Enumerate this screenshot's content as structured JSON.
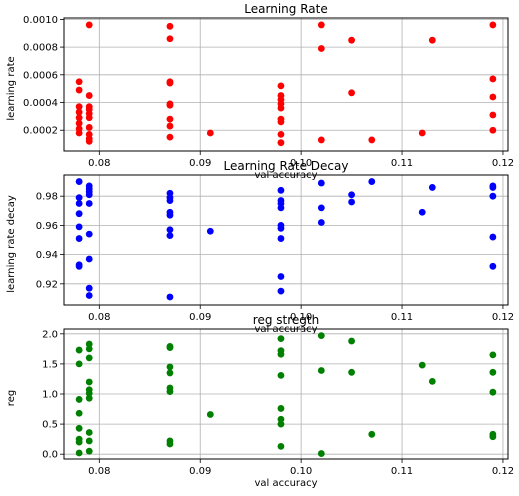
{
  "chart_data": [
    {
      "type": "scatter",
      "title": "Learning Rate",
      "xlabel": "val accuracy",
      "ylabel": "learning rate",
      "xlim": [
        0.0765,
        0.1205
      ],
      "ylim": [
        5e-05,
        0.00101
      ],
      "xticks": [
        0.08,
        0.09,
        0.1,
        0.11,
        0.12
      ],
      "xtick_labels": [
        "0.08",
        "0.09",
        "0.10",
        "0.11",
        "0.12"
      ],
      "yticks": [
        0.0002,
        0.0004,
        0.0006,
        0.0008,
        0.001
      ],
      "ytick_labels": [
        "0.0002",
        "0.0004",
        "0.0006",
        "0.0008",
        "0.0010"
      ],
      "grid": true,
      "color": "#ff0000",
      "points": [
        [
          0.078,
          0.00055
        ],
        [
          0.078,
          0.00049
        ],
        [
          0.078,
          0.00037
        ],
        [
          0.078,
          0.00033
        ],
        [
          0.078,
          0.00029
        ],
        [
          0.078,
          0.00025
        ],
        [
          0.078,
          0.00021
        ],
        [
          0.078,
          0.00018
        ],
        [
          0.079,
          0.00096
        ],
        [
          0.079,
          0.00045
        ],
        [
          0.079,
          0.00037
        ],
        [
          0.079,
          0.00035
        ],
        [
          0.079,
          0.00032
        ],
        [
          0.079,
          0.00029
        ],
        [
          0.079,
          0.00022
        ],
        [
          0.079,
          0.00017
        ],
        [
          0.079,
          0.00014
        ],
        [
          0.079,
          0.00012
        ],
        [
          0.087,
          0.00095
        ],
        [
          0.087,
          0.00086
        ],
        [
          0.087,
          0.00055
        ],
        [
          0.087,
          0.00054
        ],
        [
          0.087,
          0.00039
        ],
        [
          0.087,
          0.00038
        ],
        [
          0.087,
          0.00028
        ],
        [
          0.087,
          0.00023
        ],
        [
          0.087,
          0.00015
        ],
        [
          0.091,
          0.00018
        ],
        [
          0.098,
          0.00052
        ],
        [
          0.098,
          0.00045
        ],
        [
          0.098,
          0.00042
        ],
        [
          0.098,
          0.00039
        ],
        [
          0.098,
          0.00036
        ],
        [
          0.098,
          0.00028
        ],
        [
          0.098,
          0.00026
        ],
        [
          0.098,
          0.00017
        ],
        [
          0.098,
          0.00011
        ],
        [
          0.102,
          0.00096
        ],
        [
          0.102,
          0.00079
        ],
        [
          0.102,
          0.00013
        ],
        [
          0.105,
          0.00085
        ],
        [
          0.105,
          0.00047
        ],
        [
          0.107,
          0.00013
        ],
        [
          0.112,
          0.00018
        ],
        [
          0.113,
          0.00085
        ],
        [
          0.119,
          0.00096
        ],
        [
          0.119,
          0.00057
        ],
        [
          0.119,
          0.00044
        ],
        [
          0.119,
          0.00031
        ],
        [
          0.119,
          0.0002
        ]
      ]
    },
    {
      "type": "scatter",
      "title": "Learning Rate Decay",
      "xlabel": "val accuracy",
      "ylabel": "learning rate decay",
      "xlim": [
        0.0765,
        0.1205
      ],
      "ylim": [
        0.9055,
        0.9945
      ],
      "xticks": [
        0.08,
        0.09,
        0.1,
        0.11,
        0.12
      ],
      "xtick_labels": [
        "0.08",
        "0.09",
        "0.10",
        "0.11",
        "0.12"
      ],
      "yticks": [
        0.92,
        0.94,
        0.96,
        0.98
      ],
      "ytick_labels": [
        "0.92",
        "0.94",
        "0.96",
        "0.98"
      ],
      "grid": true,
      "color": "#0000ff",
      "points": [
        [
          0.078,
          0.99
        ],
        [
          0.078,
          0.979
        ],
        [
          0.078,
          0.975
        ],
        [
          0.078,
          0.968
        ],
        [
          0.078,
          0.959
        ],
        [
          0.078,
          0.951
        ],
        [
          0.078,
          0.933
        ],
        [
          0.078,
          0.932
        ],
        [
          0.079,
          0.987
        ],
        [
          0.079,
          0.985
        ],
        [
          0.079,
          0.983
        ],
        [
          0.079,
          0.981
        ],
        [
          0.079,
          0.975
        ],
        [
          0.079,
          0.954
        ],
        [
          0.079,
          0.937
        ],
        [
          0.079,
          0.917
        ],
        [
          0.079,
          0.912
        ],
        [
          0.087,
          0.982
        ],
        [
          0.087,
          0.979
        ],
        [
          0.087,
          0.977
        ],
        [
          0.087,
          0.969
        ],
        [
          0.087,
          0.967
        ],
        [
          0.087,
          0.957
        ],
        [
          0.087,
          0.953
        ],
        [
          0.087,
          0.911
        ],
        [
          0.091,
          0.956
        ],
        [
          0.098,
          0.984
        ],
        [
          0.098,
          0.977
        ],
        [
          0.098,
          0.975
        ],
        [
          0.098,
          0.972
        ],
        [
          0.098,
          0.96
        ],
        [
          0.098,
          0.958
        ],
        [
          0.098,
          0.951
        ],
        [
          0.098,
          0.925
        ],
        [
          0.098,
          0.915
        ],
        [
          0.102,
          0.989
        ],
        [
          0.102,
          0.972
        ],
        [
          0.102,
          0.962
        ],
        [
          0.105,
          0.981
        ],
        [
          0.105,
          0.976
        ],
        [
          0.107,
          0.99
        ],
        [
          0.112,
          0.969
        ],
        [
          0.113,
          0.986
        ],
        [
          0.119,
          0.987
        ],
        [
          0.119,
          0.986
        ],
        [
          0.119,
          0.98
        ],
        [
          0.119,
          0.952
        ],
        [
          0.119,
          0.932
        ]
      ]
    },
    {
      "type": "scatter",
      "title": "reg stregth",
      "xlabel": "val accuracy",
      "ylabel": "reg",
      "xlim": [
        0.0765,
        0.1205
      ],
      "ylim": [
        -0.08,
        2.08
      ],
      "xticks": [
        0.08,
        0.09,
        0.1,
        0.11,
        0.12
      ],
      "xtick_labels": [
        "0.08",
        "0.09",
        "0.10",
        "0.11",
        "0.12"
      ],
      "yticks": [
        0.0,
        0.5,
        1.0,
        1.5,
        2.0
      ],
      "ytick_labels": [
        "0.0",
        "0.5",
        "1.0",
        "1.5",
        "2.0"
      ],
      "grid": true,
      "color": "#008000",
      "points": [
        [
          0.078,
          1.73
        ],
        [
          0.078,
          1.5
        ],
        [
          0.078,
          0.91
        ],
        [
          0.078,
          0.68
        ],
        [
          0.078,
          0.43
        ],
        [
          0.078,
          0.25
        ],
        [
          0.078,
          0.2
        ],
        [
          0.078,
          0.02
        ],
        [
          0.079,
          1.83
        ],
        [
          0.079,
          1.75
        ],
        [
          0.079,
          1.6
        ],
        [
          0.079,
          1.2
        ],
        [
          0.079,
          1.07
        ],
        [
          0.079,
          1.01
        ],
        [
          0.079,
          0.93
        ],
        [
          0.079,
          0.36
        ],
        [
          0.079,
          0.22
        ],
        [
          0.079,
          0.05
        ],
        [
          0.087,
          1.79
        ],
        [
          0.087,
          1.77
        ],
        [
          0.087,
          1.45
        ],
        [
          0.087,
          1.35
        ],
        [
          0.087,
          1.1
        ],
        [
          0.087,
          1.04
        ],
        [
          0.087,
          0.22
        ],
        [
          0.087,
          0.17
        ],
        [
          0.091,
          0.66
        ],
        [
          0.098,
          1.92
        ],
        [
          0.098,
          1.72
        ],
        [
          0.098,
          1.66
        ],
        [
          0.098,
          1.31
        ],
        [
          0.098,
          0.76
        ],
        [
          0.098,
          0.58
        ],
        [
          0.098,
          0.5
        ],
        [
          0.098,
          0.13
        ],
        [
          0.102,
          1.97
        ],
        [
          0.102,
          1.39
        ],
        [
          0.102,
          0.01
        ],
        [
          0.105,
          1.88
        ],
        [
          0.105,
          1.36
        ],
        [
          0.107,
          0.33
        ],
        [
          0.112,
          1.48
        ],
        [
          0.113,
          1.21
        ],
        [
          0.119,
          1.65
        ],
        [
          0.119,
          1.36
        ],
        [
          0.119,
          1.03
        ],
        [
          0.119,
          0.33
        ],
        [
          0.119,
          0.29
        ]
      ]
    }
  ]
}
